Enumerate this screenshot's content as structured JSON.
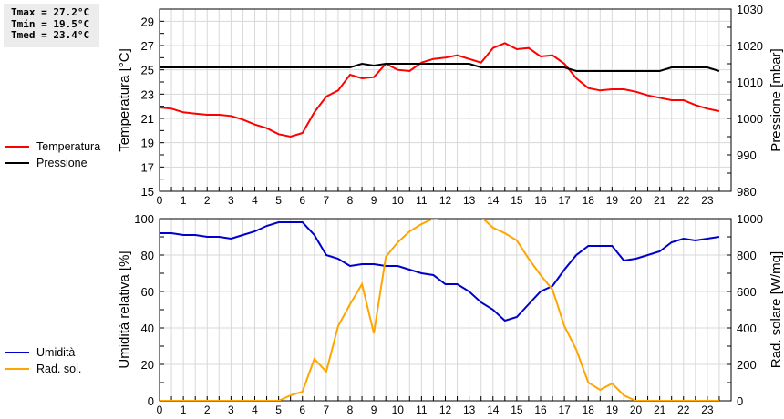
{
  "stats": {
    "tmax": "Tmax = 27.2°C",
    "tmin": "Tmin = 19.5°C",
    "tmed": "Tmed = 23.4°C"
  },
  "legend_top": [
    {
      "label": "Temperatura",
      "color": "#ff0000"
    },
    {
      "label": "Pressione",
      "color": "#000000"
    }
  ],
  "legend_bottom": [
    {
      "label": "Umidità",
      "color": "#0000cc"
    },
    {
      "label": "Rad. sol.",
      "color": "#ffa500"
    }
  ],
  "chart_data": [
    {
      "type": "line",
      "title": "",
      "xlabel": "",
      "x_ticks": [
        0,
        1,
        2,
        3,
        4,
        5,
        6,
        7,
        8,
        9,
        10,
        11,
        12,
        13,
        14,
        15,
        16,
        17,
        18,
        19,
        20,
        21,
        22,
        23
      ],
      "xlim": [
        0,
        24
      ],
      "ylabel": "Temperatura [°C]",
      "ylim": [
        15,
        30
      ],
      "y_ticks": [
        15,
        17,
        19,
        21,
        23,
        25,
        27,
        29
      ],
      "y2label": "Pressione [mbar]",
      "y2lim": [
        980,
        1030
      ],
      "y2_ticks": [
        980,
        990,
        1000,
        1010,
        1020,
        1030
      ],
      "grid": true,
      "legend_position": "left",
      "x": [
        0,
        0.5,
        1,
        1.5,
        2,
        2.5,
        3,
        3.5,
        4,
        4.5,
        5,
        5.5,
        6,
        6.5,
        7,
        7.5,
        8,
        8.5,
        9,
        9.5,
        10,
        10.5,
        11,
        11.5,
        12,
        12.5,
        13,
        13.5,
        14,
        14.5,
        15,
        15.5,
        16,
        16.5,
        17,
        17.5,
        18,
        18.5,
        19,
        19.5,
        20,
        20.5,
        21,
        21.5,
        22,
        22.5,
        23,
        23.5
      ],
      "series": [
        {
          "name": "Temperatura",
          "axis": "left",
          "color": "#ff0000",
          "values": [
            21.9,
            21.8,
            21.5,
            21.4,
            21.3,
            21.3,
            21.2,
            20.9,
            20.5,
            20.2,
            19.7,
            19.5,
            19.8,
            21.5,
            22.8,
            23.3,
            24.6,
            24.3,
            24.4,
            25.5,
            25.0,
            24.9,
            25.6,
            25.9,
            26.0,
            26.2,
            25.9,
            25.6,
            26.8,
            27.2,
            26.7,
            26.8,
            26.1,
            26.2,
            25.5,
            24.3,
            23.5,
            23.3,
            23.4,
            23.4,
            23.2,
            22.9,
            22.7,
            22.5,
            22.5,
            22.1,
            21.8,
            21.6
          ]
        },
        {
          "name": "Pressione",
          "axis": "right",
          "color": "#000000",
          "values": [
            1014,
            1014,
            1014,
            1014,
            1014,
            1014,
            1014,
            1014,
            1014,
            1014,
            1014,
            1014,
            1014,
            1014,
            1014,
            1014,
            1014,
            1015,
            1014.5,
            1015,
            1015,
            1015,
            1015,
            1015,
            1015,
            1015,
            1015,
            1014,
            1014,
            1014,
            1014,
            1014,
            1014,
            1014,
            1014,
            1013,
            1013,
            1013,
            1013,
            1013,
            1013,
            1013,
            1013,
            1014,
            1014,
            1014,
            1014,
            1013
          ]
        }
      ]
    },
    {
      "type": "line",
      "title": "",
      "xlabel": "",
      "x_ticks": [
        0,
        1,
        2,
        3,
        4,
        5,
        6,
        7,
        8,
        9,
        10,
        11,
        12,
        13,
        14,
        15,
        16,
        17,
        18,
        19,
        20,
        21,
        22,
        23
      ],
      "xlim": [
        0,
        24
      ],
      "ylabel": "Umidità relativa [%]",
      "ylim": [
        0,
        100
      ],
      "y_ticks": [
        0,
        20,
        40,
        60,
        80,
        100
      ],
      "y2label": "Rad. solare [W/mq]",
      "y2lim": [
        0,
        1000
      ],
      "y2_ticks": [
        0,
        200,
        400,
        600,
        800,
        1000
      ],
      "grid": true,
      "legend_position": "left",
      "x": [
        0,
        0.5,
        1,
        1.5,
        2,
        2.5,
        3,
        3.5,
        4,
        4.5,
        5,
        5.5,
        6,
        6.5,
        7,
        7.5,
        8,
        8.5,
        9,
        9.5,
        10,
        10.5,
        11,
        11.5,
        12,
        12.5,
        13,
        13.5,
        14,
        14.5,
        15,
        15.5,
        16,
        16.5,
        17,
        17.5,
        18,
        18.5,
        19,
        19.5,
        20,
        20.5,
        21,
        21.5,
        22,
        22.5,
        23,
        23.5
      ],
      "series": [
        {
          "name": "Umidità",
          "axis": "left",
          "color": "#0000cc",
          "values": [
            92,
            92,
            91,
            91,
            90,
            90,
            89,
            91,
            93,
            96,
            98,
            98,
            98,
            91,
            80,
            78,
            74,
            75,
            75,
            74,
            74,
            72,
            70,
            69,
            64,
            64,
            60,
            54,
            50,
            44,
            46,
            53,
            60,
            63,
            72,
            80,
            85,
            85,
            85,
            77,
            78,
            80,
            82,
            87,
            89,
            88,
            89,
            90
          ]
        },
        {
          "name": "Rad. sol.",
          "axis": "right",
          "color": "#ffa500",
          "values": [
            0,
            0,
            0,
            0,
            0,
            0,
            0,
            0,
            0,
            0,
            0,
            30,
            50,
            230,
            160,
            410,
            530,
            640,
            370,
            790,
            870,
            930,
            970,
            1000,
            1010,
            1050,
            1050,
            1010,
            950,
            920,
            880,
            780,
            690,
            610,
            410,
            280,
            100,
            60,
            95,
            30,
            0,
            0,
            0,
            0,
            0,
            0,
            0,
            0
          ]
        }
      ]
    }
  ]
}
